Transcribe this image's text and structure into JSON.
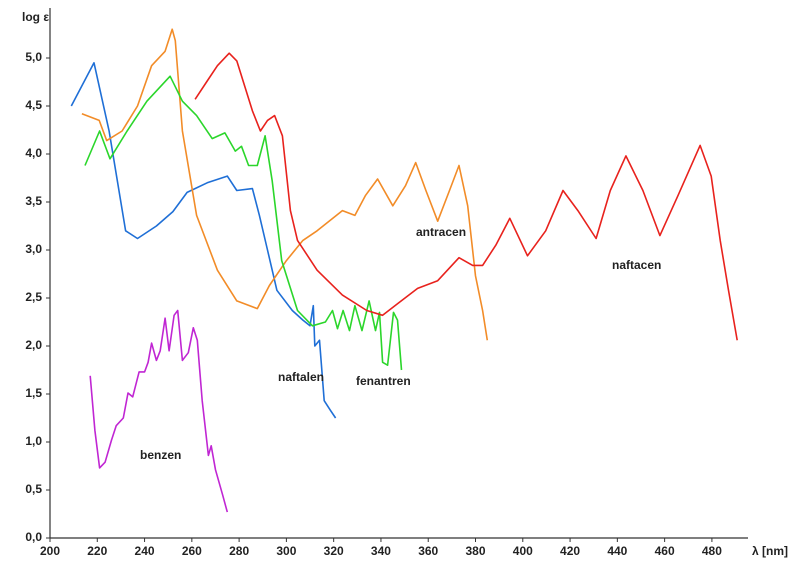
{
  "chart_data": {
    "type": "line",
    "y_label": "log ε",
    "x_label": "λ [nm]",
    "xlim": [
      200,
      494
    ],
    "xticks": [
      200,
      220,
      240,
      260,
      280,
      300,
      320,
      340,
      360,
      380,
      400,
      420,
      440,
      460,
      480
    ],
    "ylim": [
      0,
      5.5
    ],
    "yticks": [
      {
        "value": 0,
        "label": "0,0"
      },
      {
        "value": 0.5,
        "label": "0,5"
      },
      {
        "value": 1,
        "label": "1,0"
      },
      {
        "value": 1.5,
        "label": "1,5"
      },
      {
        "value": 2,
        "label": "2,0"
      },
      {
        "value": 2.5,
        "label": "2,5"
      },
      {
        "value": 3,
        "label": "3,0"
      },
      {
        "value": 3.5,
        "label": "3,5"
      },
      {
        "value": 4,
        "label": "4,0"
      },
      {
        "value": 4.5,
        "label": "4,5"
      },
      {
        "value": 5,
        "label": "5,0"
      }
    ],
    "series": [
      {
        "name": "naftalen",
        "color": "#1f6fd6",
        "x": [
          209,
          218.6,
          225,
          232,
          237,
          245,
          252,
          258,
          266.5,
          275,
          279,
          285.6,
          288.6,
          292,
          296,
          302.5,
          307,
          310,
          311.4,
          312,
          314,
          316,
          318.6,
          320.8
        ],
        "values": [
          4.5,
          4.95,
          4.24,
          3.2,
          3.12,
          3.25,
          3.4,
          3.6,
          3.7,
          3.77,
          3.62,
          3.64,
          3.36,
          3.0,
          2.58,
          2.37,
          2.27,
          2.21,
          2.42,
          2.0,
          2.06,
          1.43,
          1.33,
          1.25
        ]
      },
      {
        "name": "antracen",
        "color": "#f28c28",
        "x": [
          213.5,
          220.8,
          224,
          230.5,
          237,
          243,
          248.7,
          251.7,
          253,
          256,
          262,
          270.8,
          279,
          287.7,
          292.8,
          300,
          307,
          313,
          323.7,
          329,
          333.5,
          338.6,
          345,
          350.4,
          354.7,
          359,
          364,
          369,
          373,
          376.7,
          380,
          383,
          385
        ],
        "values": [
          4.42,
          4.35,
          4.14,
          4.24,
          4.5,
          4.92,
          5.07,
          5.3,
          5.18,
          4.24,
          3.36,
          2.79,
          2.47,
          2.39,
          2.63,
          2.89,
          3.1,
          3.2,
          3.41,
          3.36,
          3.57,
          3.74,
          3.46,
          3.67,
          3.91,
          3.62,
          3.3,
          3.62,
          3.88,
          3.46,
          2.73,
          2.37,
          2.06
        ]
      },
      {
        "name": "fenantren",
        "color": "#2bd62b",
        "x": [
          214.8,
          221,
          225.4,
          232.6,
          241,
          250.8,
          256,
          262,
          268.6,
          274,
          278.4,
          281,
          284,
          287.7,
          291,
          294,
          298,
          304.7,
          311,
          316.5,
          319.5,
          321.6,
          324,
          326.7,
          329,
          332,
          335,
          337.7,
          339.4,
          340.7,
          342.8,
          345.3,
          347,
          348.7
        ],
        "values": [
          3.88,
          4.24,
          3.95,
          4.24,
          4.55,
          4.81,
          4.55,
          4.4,
          4.16,
          4.22,
          4.03,
          4.08,
          3.88,
          3.88,
          4.19,
          3.72,
          2.89,
          2.37,
          2.21,
          2.25,
          2.37,
          2.18,
          2.37,
          2.16,
          2.42,
          2.16,
          2.47,
          2.16,
          2.35,
          1.83,
          1.8,
          2.35,
          2.27,
          1.75
        ]
      },
      {
        "name": "naftacen",
        "color": "#e8221d",
        "x": [
          261.4,
          266.5,
          270.8,
          275.8,
          279,
          285.6,
          289,
          292,
          295,
          298.3,
          301.7,
          304.7,
          313,
          323.7,
          334,
          340.7,
          347,
          355.5,
          364,
          373,
          378.8,
          383,
          388.6,
          394.5,
          402,
          409.7,
          417,
          423.3,
          431,
          437,
          443.6,
          450.8,
          458,
          465.7,
          475,
          479.7,
          483.5,
          487,
          490.7
        ],
        "values": [
          4.57,
          4.76,
          4.92,
          5.05,
          4.97,
          4.45,
          4.24,
          4.35,
          4.4,
          4.19,
          3.41,
          3.1,
          2.79,
          2.53,
          2.37,
          2.32,
          2.44,
          2.6,
          2.68,
          2.92,
          2.84,
          2.84,
          3.05,
          3.33,
          2.94,
          3.2,
          3.62,
          3.41,
          3.12,
          3.62,
          3.98,
          3.62,
          3.15,
          3.57,
          4.09,
          3.77,
          3.1,
          2.58,
          2.06
        ]
      },
      {
        "name": "benzen",
        "color": "#c026d3",
        "x": [
          217,
          219,
          221,
          223.3,
          226,
          228,
          231,
          233,
          235,
          237.7,
          240,
          241.5,
          243,
          245,
          246.6,
          248.7,
          250.4,
          252.5,
          254,
          256,
          258.5,
          260.6,
          262.3,
          264.4,
          267,
          268.2,
          270,
          273,
          275
        ],
        "values": [
          1.69,
          1.12,
          0.73,
          0.79,
          1.02,
          1.17,
          1.25,
          1.51,
          1.47,
          1.73,
          1.73,
          1.83,
          2.03,
          1.85,
          1.95,
          2.29,
          1.95,
          2.32,
          2.37,
          1.85,
          1.93,
          2.19,
          2.06,
          1.43,
          0.86,
          0.96,
          0.71,
          0.45,
          0.27
        ]
      }
    ]
  }
}
